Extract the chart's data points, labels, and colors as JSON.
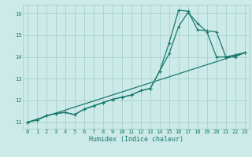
{
  "title": "",
  "xlabel": "Humidex (Indice chaleur)",
  "bg_color": "#cceae7",
  "grid_color": "#add4d0",
  "line_color": "#1a7a6e",
  "xlim": [
    -0.5,
    23.5
  ],
  "ylim": [
    10.7,
    16.4
  ],
  "xticks": [
    0,
    1,
    2,
    3,
    4,
    5,
    6,
    7,
    8,
    9,
    10,
    11,
    12,
    13,
    14,
    15,
    16,
    17,
    18,
    19,
    20,
    21,
    22,
    23
  ],
  "yticks": [
    11,
    12,
    13,
    14,
    15,
    16
  ],
  "series1_x": [
    0,
    1,
    2,
    3,
    4,
    5,
    6,
    7,
    8,
    9,
    10,
    11,
    12,
    13,
    14,
    15,
    16,
    17,
    18,
    19,
    20,
    21,
    22,
    23
  ],
  "series1_y": [
    11.0,
    11.1,
    11.3,
    11.4,
    11.45,
    11.35,
    11.6,
    11.75,
    11.9,
    12.05,
    12.15,
    12.25,
    12.45,
    12.55,
    13.35,
    14.15,
    15.4,
    16.05,
    15.55,
    15.15,
    14.0,
    14.0,
    14.1,
    14.2
  ],
  "series2_x": [
    0,
    1,
    2,
    3,
    4,
    5,
    6,
    7,
    8,
    9,
    10,
    11,
    12,
    13,
    14,
    15,
    16,
    17,
    18,
    19,
    20,
    21,
    22,
    23
  ],
  "series2_y": [
    11.0,
    11.1,
    11.3,
    11.4,
    11.45,
    11.35,
    11.6,
    11.75,
    11.9,
    12.05,
    12.15,
    12.25,
    12.45,
    12.55,
    13.35,
    14.65,
    16.15,
    16.1,
    15.25,
    15.2,
    15.15,
    14.0,
    14.0,
    14.2
  ],
  "series3_x": [
    0,
    23
  ],
  "series3_y": [
    11.0,
    14.2
  ]
}
